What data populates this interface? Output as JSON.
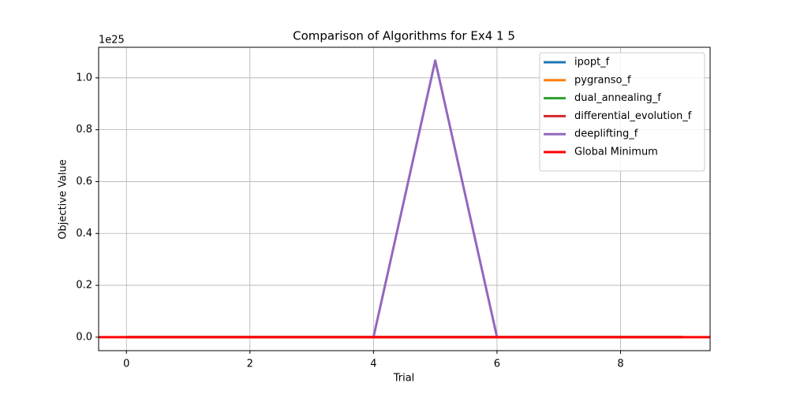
{
  "chart_data": {
    "type": "line",
    "title": "Comparison of Algorithms for Ex4 1 5",
    "x_label": "Trial",
    "y_label": "Objective Value",
    "y_offset_label": "1e25",
    "x": [
      0,
      1,
      2,
      3,
      4,
      5,
      6,
      7,
      8,
      9
    ],
    "series": [
      {
        "name": "ipopt_f",
        "color": "#1f77b4",
        "values": [
          0,
          0,
          0,
          0,
          0,
          0,
          0,
          0,
          0,
          0
        ]
      },
      {
        "name": "pygranso_f",
        "color": "#ff7f0e",
        "values": [
          0,
          0,
          0,
          0,
          0,
          0,
          0,
          0,
          0,
          0
        ]
      },
      {
        "name": "dual_annealing_f",
        "color": "#2ca02c",
        "values": [
          0,
          0,
          0,
          0,
          0,
          0,
          0,
          0,
          0,
          0
        ]
      },
      {
        "name": "differential_evolution_f",
        "color": "#d62728",
        "values": [
          0,
          0,
          0,
          0,
          0,
          0,
          0,
          0,
          0,
          0
        ]
      },
      {
        "name": "deeplifting_f",
        "color": "#9467bd",
        "values": [
          0,
          0,
          0,
          0,
          0,
          1.067,
          0,
          0,
          0,
          0
        ]
      }
    ],
    "reference_line": {
      "name": "Global Minimum",
      "color": "#ff0000",
      "value": 0
    },
    "xlim": [
      -0.45,
      9.45
    ],
    "xticks": [
      0,
      2,
      4,
      6,
      8
    ],
    "ylim": [
      -0.052,
      1.118
    ],
    "yticks": [
      {
        "value": 0,
        "label": "0.0"
      },
      0.2,
      0.4,
      0.6,
      0.8,
      {
        "value": 1,
        "label": "1.0"
      }
    ],
    "grid": true,
    "legend": "upper right"
  }
}
